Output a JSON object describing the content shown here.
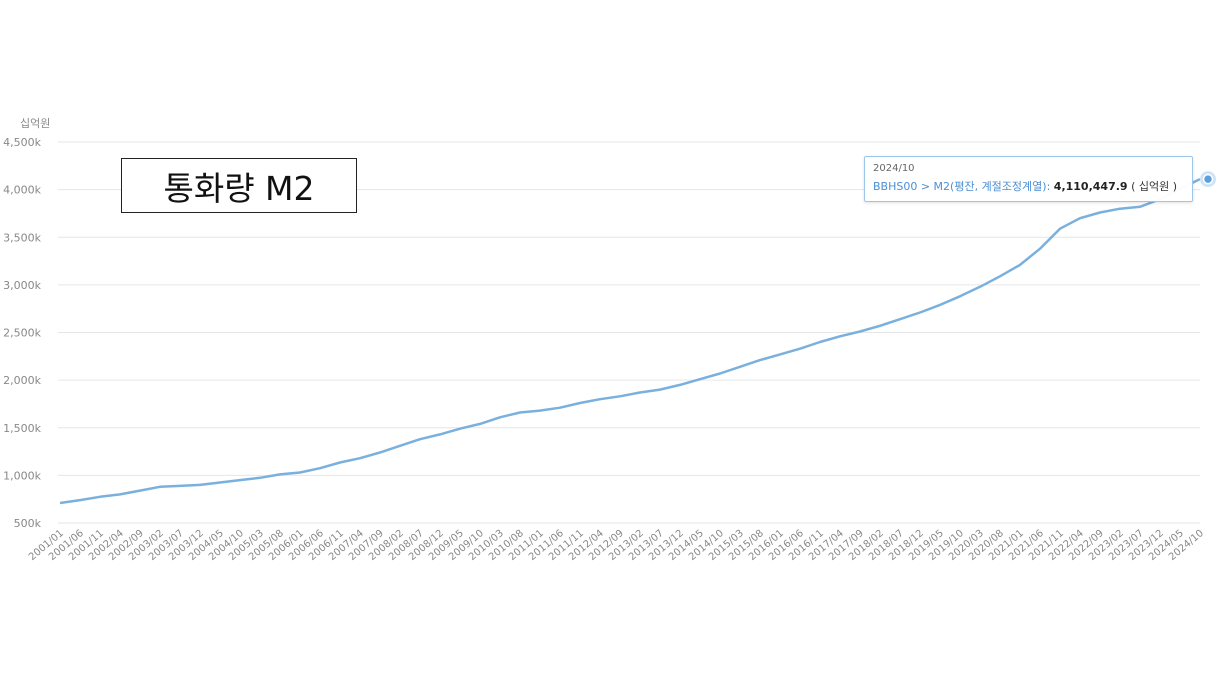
{
  "title": "통화량 M2",
  "tooltip": {
    "date": "2024/10",
    "series": "BBHS00 > M2(평잔, 계절조정계열)",
    "value": "4,110,447.9",
    "unit": "( 십억원 )"
  },
  "colors": {
    "line": "#7ab0de",
    "grid": "#e6e6e6",
    "tick_text": "#888888",
    "marker": "#5b9fdc"
  },
  "chart_data": {
    "type": "line",
    "title": "통화량 M2",
    "ylabel": "십억원",
    "xlabel": "",
    "ylim": [
      500,
      4500
    ],
    "yticks": [
      500,
      1000,
      1500,
      2000,
      2500,
      3000,
      3500,
      4000,
      4500
    ],
    "ytick_labels": [
      "500k",
      "1,000k",
      "1,500k",
      "2,000k",
      "2,500k",
      "3,000k",
      "3,500k",
      "4,000k",
      "4,500k"
    ],
    "xtick_labels": [
      "2001/01",
      "2001/06",
      "2001/11",
      "2002/04",
      "2002/09",
      "2003/02",
      "2003/07",
      "2003/12",
      "2004/05",
      "2004/10",
      "2005/03",
      "2005/08",
      "2006/01",
      "2006/06",
      "2006/11",
      "2007/04",
      "2007/09",
      "2008/02",
      "2008/07",
      "2008/12",
      "2009/05",
      "2009/10",
      "2010/03",
      "2010/08",
      "2011/01",
      "2011/06",
      "2011/11",
      "2012/04",
      "2012/09",
      "2013/02",
      "2013/07",
      "2013/12",
      "2014/05",
      "2014/10",
      "2015/03",
      "2015/08",
      "2016/01",
      "2016/06",
      "2016/11",
      "2017/04",
      "2017/09",
      "2018/02",
      "2018/07",
      "2018/12",
      "2019/05",
      "2019/10",
      "2020/03",
      "2020/08",
      "2021/01",
      "2021/06",
      "2021/11",
      "2022/04",
      "2022/09",
      "2023/02",
      "2023/07",
      "2023/12",
      "2024/05",
      "2024/10"
    ],
    "grid": true,
    "series": [
      {
        "name": "BBHS00 > M2(평잔, 계절조정계열)",
        "x": [
          "2001/01",
          "2001/06",
          "2001/11",
          "2002/04",
          "2002/09",
          "2003/02",
          "2003/07",
          "2003/12",
          "2004/05",
          "2004/10",
          "2005/03",
          "2005/08",
          "2006/01",
          "2006/06",
          "2006/11",
          "2007/04",
          "2007/09",
          "2008/02",
          "2008/07",
          "2008/12",
          "2009/05",
          "2009/10",
          "2010/03",
          "2010/08",
          "2011/01",
          "2011/06",
          "2011/11",
          "2012/04",
          "2012/09",
          "2013/02",
          "2013/07",
          "2013/12",
          "2014/05",
          "2014/10",
          "2015/03",
          "2015/08",
          "2016/01",
          "2016/06",
          "2016/11",
          "2017/04",
          "2017/09",
          "2018/02",
          "2018/07",
          "2018/12",
          "2019/05",
          "2019/10",
          "2020/03",
          "2020/08",
          "2021/01",
          "2021/06",
          "2021/11",
          "2022/04",
          "2022/09",
          "2023/02",
          "2023/07",
          "2023/12",
          "2024/05",
          "2024/10"
        ],
        "values": [
          710,
          740,
          775,
          800,
          840,
          880,
          890,
          900,
          925,
          950,
          975,
          1010,
          1030,
          1075,
          1135,
          1180,
          1240,
          1310,
          1380,
          1430,
          1490,
          1540,
          1610,
          1660,
          1680,
          1710,
          1760,
          1800,
          1830,
          1870,
          1900,
          1950,
          2010,
          2070,
          2140,
          2210,
          2270,
          2330,
          2400,
          2460,
          2510,
          2570,
          2640,
          2710,
          2790,
          2880,
          2980,
          3090,
          3210,
          3380,
          3590,
          3700,
          3760,
          3800,
          3820,
          3900,
          4010,
          4110
        ]
      }
    ],
    "marker": {
      "x": "2024/10",
      "y": 4110.4
    }
  }
}
